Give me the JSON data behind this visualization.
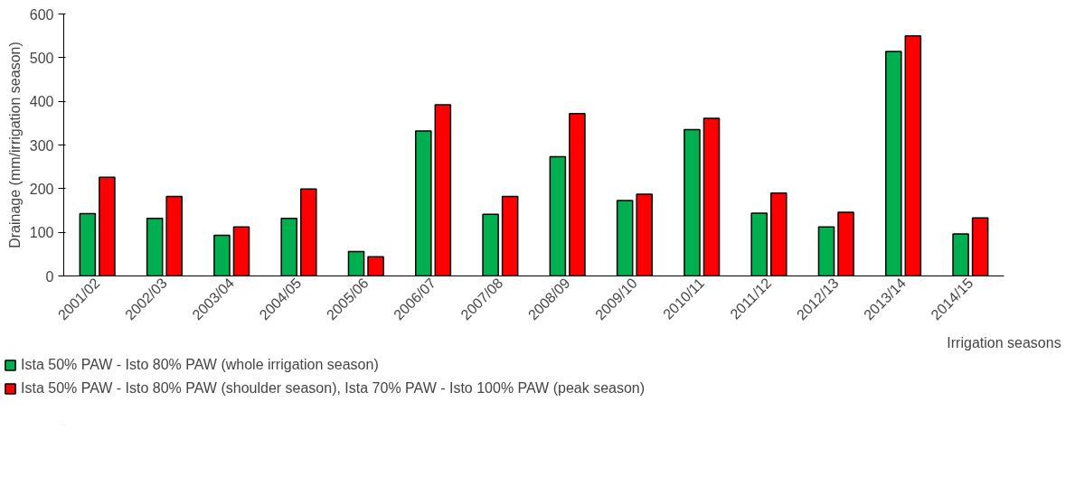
{
  "chart_data": {
    "type": "bar",
    "xlabel": "Irrigation seasons",
    "ylabel": "Drainage (mm/irrigation season)",
    "categories": [
      "2001/02",
      "2002/03",
      "2003/04",
      "2004/05",
      "2005/06",
      "2006/07",
      "2007/08",
      "2008/09",
      "2009/10",
      "2010/11",
      "2011/12",
      "2012/13",
      "2013/14",
      "2014/15"
    ],
    "series": [
      {
        "name": "Ista 50% PAW - Isto 80% PAW (whole irrigation season)",
        "color": "#00b050",
        "values": [
          143,
          132,
          93,
          132,
          56,
          332,
          141,
          273,
          173,
          335,
          144,
          112,
          514,
          96
        ]
      },
      {
        "name": "Ista 50% PAW - Isto 80% PAW (shoulder season), Ista 70% PAW - Isto 100% PAW (peak season)",
        "color": "#ff0000",
        "values": [
          226,
          182,
          112,
          199,
          44,
          392,
          182,
          372,
          187,
          361,
          190,
          146,
          550,
          133
        ]
      }
    ],
    "ylim": [
      0,
      600
    ],
    "yticks": [
      0,
      100,
      200,
      300,
      400,
      500,
      600
    ],
    "grid": false,
    "legend": "bottom left"
  }
}
